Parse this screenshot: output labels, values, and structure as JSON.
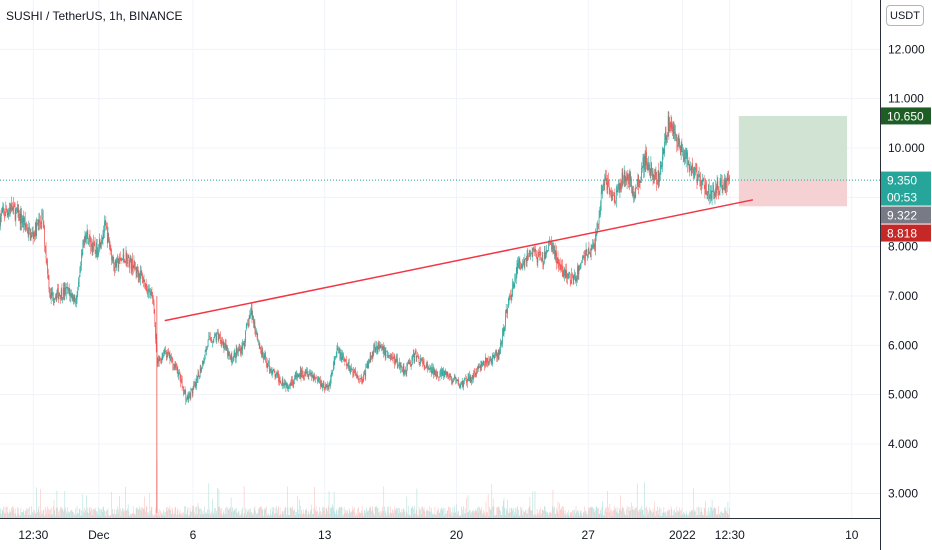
{
  "header": {
    "symbol_title": "SUSHI / TetherUS, 1h, BINANCE",
    "currency": "USDT"
  },
  "colors": {
    "up": "#26a69a",
    "down": "#ef5350",
    "trendline": "#f23645",
    "target_zone": "#d1e4d4",
    "stop_zone": "#f6d1d3",
    "grid": "#f0f3fa"
  },
  "chart_data": {
    "type": "candlestick",
    "xlim": [
      "2021-11-25T18:00",
      "2022-01-11T12:00"
    ],
    "ylim": [
      2.5,
      13.0
    ],
    "y_ticks": [
      "3.000",
      "4.000",
      "5.000",
      "6.000",
      "7.000",
      "8.000",
      "9.000",
      "10.000",
      "11.000",
      "12.000"
    ],
    "x_ticks": [
      {
        "label": "12:30",
        "t": "2021-11-27T12:30"
      },
      {
        "label": "Dec",
        "t": "2021-12-01T00:00"
      },
      {
        "label": "6",
        "t": "2021-12-06T00:00"
      },
      {
        "label": "13",
        "t": "2021-12-13T00:00"
      },
      {
        "label": "20",
        "t": "2021-12-20T00:00"
      },
      {
        "label": "27",
        "t": "2021-12-27T00:00"
      },
      {
        "label": "2022",
        "t": "2022-01-01T00:00"
      },
      {
        "label": "12:30",
        "t": "2022-01-03T12:30"
      },
      {
        "label": "10",
        "t": "2022-01-10T00:00"
      }
    ],
    "price_path": [
      [
        "2021-11-25T18:00",
        8.6
      ],
      [
        "2021-11-26T08:00",
        8.8
      ],
      [
        "2021-11-27T00:00",
        8.5
      ],
      [
        "2021-11-27T10:00",
        8.2
      ],
      [
        "2021-11-28T00:00",
        8.6
      ],
      [
        "2021-11-28T10:00",
        7.0
      ],
      [
        "2021-11-29T08:00",
        7.1
      ],
      [
        "2021-11-29T20:00",
        6.9
      ],
      [
        "2021-11-30T06:00",
        8.3
      ],
      [
        "2021-11-30T20:00",
        7.9
      ],
      [
        "2021-12-01T08:00",
        8.4
      ],
      [
        "2021-12-01T20:00",
        7.6
      ],
      [
        "2021-12-02T10:00",
        7.8
      ],
      [
        "2021-12-03T06:00",
        7.4
      ],
      [
        "2021-12-03T22:00",
        6.9
      ],
      [
        "2021-12-04T02:00",
        5.6
      ],
      [
        "2021-12-04T12:00",
        5.9
      ],
      [
        "2021-12-05T04:00",
        5.5
      ],
      [
        "2021-12-05T16:00",
        4.9
      ],
      [
        "2021-12-06T04:00",
        5.2
      ],
      [
        "2021-12-06T20:00",
        6.1
      ],
      [
        "2021-12-07T10:00",
        6.2
      ],
      [
        "2021-12-08T00:00",
        5.7
      ],
      [
        "2021-12-08T16:00",
        6.0
      ],
      [
        "2021-12-09T02:00",
        6.7
      ],
      [
        "2021-12-09T16:00",
        5.8
      ],
      [
        "2021-12-10T08:00",
        5.4
      ],
      [
        "2021-12-11T00:00",
        5.2
      ],
      [
        "2021-12-12T00:00",
        5.5
      ],
      [
        "2021-12-12T16:00",
        5.3
      ],
      [
        "2021-12-13T04:00",
        5.1
      ],
      [
        "2021-12-13T16:00",
        5.9
      ],
      [
        "2021-12-14T04:00",
        5.6
      ],
      [
        "2021-12-15T00:00",
        5.3
      ],
      [
        "2021-12-15T16:00",
        6.0
      ],
      [
        "2021-12-16T10:00",
        5.8
      ],
      [
        "2021-12-17T06:00",
        5.5
      ],
      [
        "2021-12-17T20:00",
        5.8
      ],
      [
        "2021-12-18T12:00",
        5.5
      ],
      [
        "2021-12-19T10:00",
        5.4
      ],
      [
        "2021-12-20T04:00",
        5.2
      ],
      [
        "2021-12-20T16:00",
        5.3
      ],
      [
        "2021-12-21T08:00",
        5.6
      ],
      [
        "2021-12-22T06:00",
        5.8
      ],
      [
        "2021-12-22T16:00",
        6.7
      ],
      [
        "2021-12-23T06:00",
        7.6
      ],
      [
        "2021-12-24T00:00",
        7.9
      ],
      [
        "2021-12-24T14:00",
        7.7
      ],
      [
        "2021-12-25T00:00",
        8.1
      ],
      [
        "2021-12-25T14:00",
        7.5
      ],
      [
        "2021-12-26T06:00",
        7.3
      ],
      [
        "2021-12-26T18:00",
        7.8
      ],
      [
        "2021-12-27T08:00",
        8.0
      ],
      [
        "2021-12-27T20:00",
        9.4
      ],
      [
        "2021-12-28T10:00",
        9.0
      ],
      [
        "2021-12-28T22:00",
        9.5
      ],
      [
        "2021-12-29T12:00",
        9.1
      ],
      [
        "2021-12-30T00:00",
        9.8
      ],
      [
        "2021-12-30T16:00",
        9.3
      ],
      [
        "2021-12-31T06:00",
        10.5
      ],
      [
        "2021-12-31T22:00",
        10.0
      ],
      [
        "2022-01-01T10:00",
        9.6
      ],
      [
        "2022-01-02T00:00",
        9.3
      ],
      [
        "2022-01-02T12:00",
        9.1
      ],
      [
        "2022-01-03T00:00",
        9.2
      ],
      [
        "2022-01-03T12:00",
        9.35
      ]
    ],
    "trendline": {
      "x": [
        "2021-12-04T12:00",
        "2022-01-04T18:00"
      ],
      "y": [
        6.5,
        8.95
      ]
    },
    "position": {
      "x": [
        "2022-01-04T00:00",
        "2022-01-09T18:00"
      ],
      "target": 10.65,
      "entry": 9.35,
      "stop": 8.818
    },
    "current_price_line": 9.35,
    "price_labels": [
      {
        "name": "target",
        "value": 10.65,
        "text": "10.650",
        "color": "#1e5e24"
      },
      {
        "name": "last",
        "value": 9.35,
        "text": "9.350",
        "countdown": "00:53",
        "color": "#26a69a"
      },
      {
        "name": "prev",
        "value": 9.322,
        "text": "9.322",
        "color": "#787b86"
      },
      {
        "name": "stop",
        "value": 8.818,
        "text": "8.818",
        "color": "#c62828"
      }
    ]
  }
}
